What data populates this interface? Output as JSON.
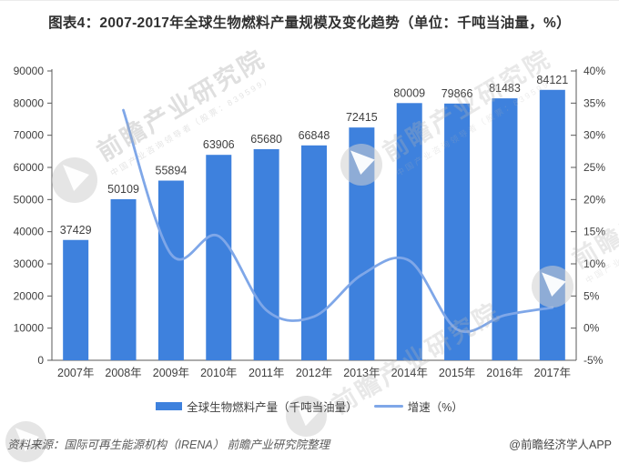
{
  "chart_data": {
    "type": "bar+line",
    "title": "图表4：2007-2017年全球生物燃料产量规模及变化趋势（单位：千吨当油量，%）",
    "categories": [
      "2007年",
      "2008年",
      "2009年",
      "2010年",
      "2011年",
      "2012年",
      "2013年",
      "2014年",
      "2015年",
      "2016年",
      "2017年"
    ],
    "series": [
      {
        "name": "全球生物燃料产量（千吨当油量）",
        "type": "bar",
        "axis": "left",
        "color": "#3E81DD",
        "values": [
          37429,
          50109,
          55894,
          63906,
          65680,
          66848,
          72415,
          80009,
          79866,
          81483,
          84121
        ]
      },
      {
        "name": "增速（%）",
        "type": "line",
        "axis": "right",
        "color": "#7FA7E8",
        "values": [
          null,
          33.9,
          11.5,
          14.3,
          2.8,
          1.8,
          8.3,
          10.5,
          -0.2,
          2.0,
          3.2
        ]
      }
    ],
    "left_axis": {
      "min": 0,
      "max": 90000,
      "step": 10000
    },
    "right_axis": {
      "min": -5,
      "max": 40,
      "step": 5,
      "suffix": "%"
    },
    "grid": false,
    "bar_value_labels": true,
    "legend_position": "bottom",
    "axis_color": "#595959",
    "label_color": "#404040"
  },
  "legend": {
    "items": [
      {
        "label": "全球生物燃料产量（千吨当油量）",
        "swatch": "bar"
      },
      {
        "label": "增速（%）",
        "swatch": "line"
      }
    ]
  },
  "footer": {
    "source": "资料来源：国际可再生能源机构（IRENA） 前瞻产业研究院整理",
    "credit": "@前瞻经济学人APP"
  },
  "watermark": {
    "text": "前瞻产业研究院",
    "subtext": "中国产业咨询领导者（股票：839599）",
    "logo": "qianzhan-logo"
  }
}
